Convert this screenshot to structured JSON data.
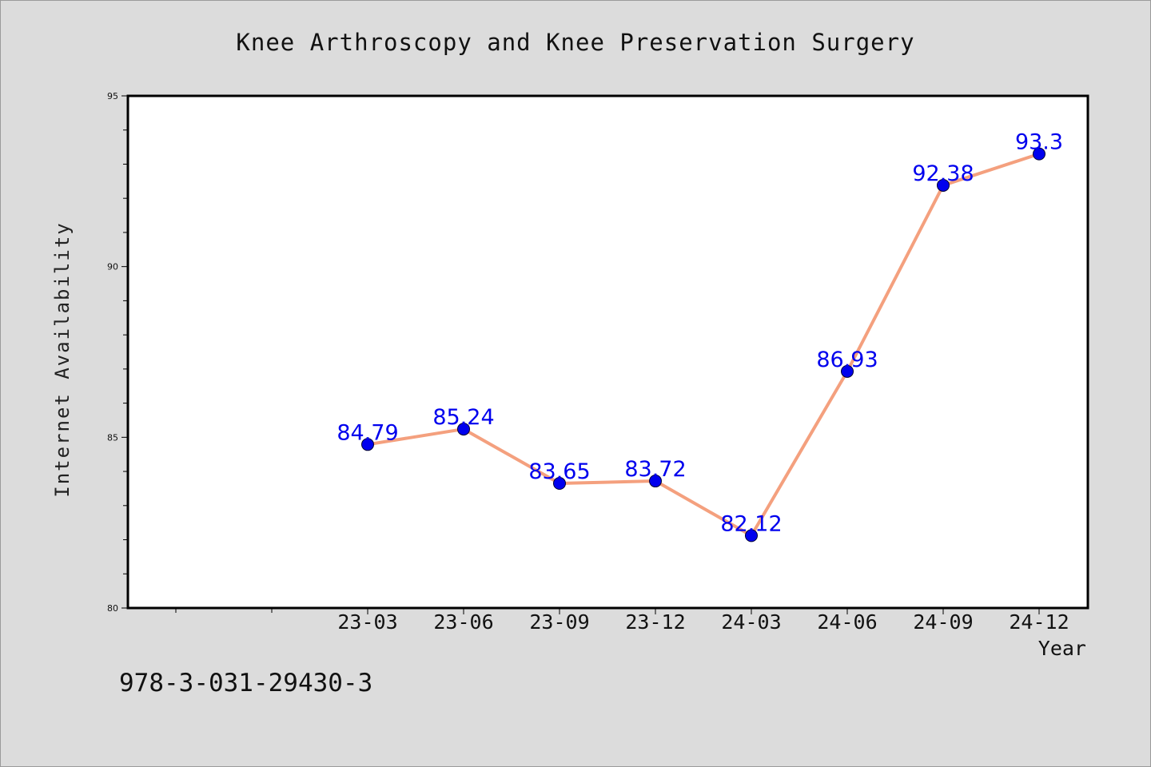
{
  "chart_data": {
    "type": "line",
    "title": "Knee Arthroscopy and Knee Preservation Surgery",
    "xlabel": "Year",
    "ylabel": "Internet Availability",
    "categories": [
      "23-03",
      "23-06",
      "23-09",
      "23-12",
      "24-03",
      "24-06",
      "24-09",
      "24-12"
    ],
    "values": [
      84.79,
      85.24,
      83.65,
      83.72,
      82.12,
      86.93,
      92.38,
      93.3
    ],
    "data_labels": [
      "84.79",
      "85.24",
      "83.65",
      "83.72",
      "82.12",
      "86.93",
      "92.38",
      "93.3"
    ],
    "ylim": [
      80,
      95
    ],
    "yticks": [
      80,
      85,
      90,
      95
    ],
    "ytick_labels": [
      "80",
      "85",
      "90",
      "95"
    ],
    "grid": false,
    "legend": "none",
    "colors": {
      "line": "#f4a07e",
      "marker": "#0000ee",
      "label": "#0000ee",
      "plot_background": "#ffffff",
      "page_background": "#dcdcdc"
    }
  },
  "footer": {
    "isbn": "978-3-031-29430-3"
  }
}
